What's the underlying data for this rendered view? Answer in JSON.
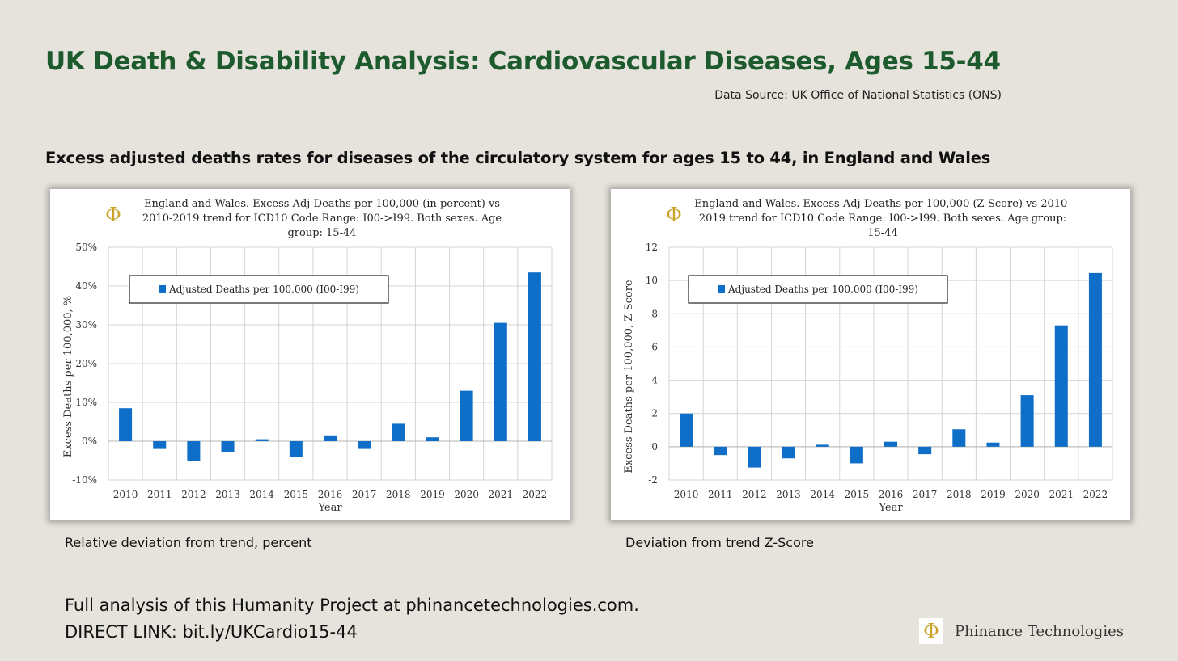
{
  "slide": {
    "title": "UK Death & Disability Analysis: Cardiovascular Diseases, Ages 15-44",
    "data_source": "Data Source: UK Office of National Statistics (ONS)",
    "section_heading": "Excess adjusted deaths rates for diseases of the circulatory system for ages 15 to 44, in England and Wales",
    "captions": [
      "Relative deviation from trend, percent",
      "Deviation from trend Z-Score"
    ],
    "footer_line1": "Full analysis of this Humanity Project at phinancetechnologies.com.",
    "footer_line2": "DIRECT LINK: bit.ly/UKCardio15-44",
    "brand": "Phinance Technologies",
    "logo_glyph": "Φ",
    "logo_icon": "phi-logo-icon",
    "colors": {
      "title": "#1d5b2e",
      "bar": "#0e6ec8",
      "background": "#e6e3dc",
      "logo_gold": "#c9a227"
    }
  },
  "chart_data": [
    {
      "type": "bar",
      "title": "England and Wales. Excess Adj-Deaths per 100,000 (in percent) vs 2010-2019 trend for ICD10 Code Range: I00->I99. Both sexes. Age group: 15-44",
      "title_lines": [
        "England and Wales. Excess Adj-Deaths per 100,000 (in percent) vs",
        "2010-2019 trend for ICD10 Code Range: I00->I99. Both sexes. Age",
        "group: 15-44"
      ],
      "xlabel": "Year",
      "ylabel": "Excess Deaths per 100,000, %",
      "categories": [
        "2010",
        "2011",
        "2012",
        "2013",
        "2014",
        "2015",
        "2016",
        "2017",
        "2018",
        "2019",
        "2020",
        "2021",
        "2022"
      ],
      "series": [
        {
          "name": "Adjusted Deaths per 100,000 (I00-I99)",
          "values": [
            8.5,
            -2.0,
            -5.0,
            -2.7,
            0.5,
            -4.0,
            1.5,
            -2.0,
            4.5,
            1.0,
            13.0,
            30.5,
            43.5
          ]
        }
      ],
      "ylim": [
        -10,
        50
      ],
      "yticks": [
        -10,
        0,
        10,
        20,
        30,
        40,
        50
      ],
      "ytick_labels": [
        "-10%",
        "0%",
        "10%",
        "20%",
        "30%",
        "40%",
        "50%"
      ],
      "grid": true,
      "legend_position": "top-left"
    },
    {
      "type": "bar",
      "title": "England and Wales. Excess Adj-Deaths per 100,000 (Z-Score) vs 2010-2019 trend for ICD10 Code Range: I00->I99. Both sexes. Age group: 15-44",
      "title_lines": [
        "England and Wales. Excess Adj-Deaths per 100,000 (Z-Score) vs 2010-",
        "2019 trend for ICD10 Code Range: I00->I99. Both sexes. Age group:",
        "15-44"
      ],
      "xlabel": "Year",
      "ylabel": "Excess Deaths per 100,000, Z-Score",
      "categories": [
        "2010",
        "2011",
        "2012",
        "2013",
        "2014",
        "2015",
        "2016",
        "2017",
        "2018",
        "2019",
        "2020",
        "2021",
        "2022"
      ],
      "series": [
        {
          "name": "Adjusted Deaths per 100,000 (I00-I99)",
          "values": [
            2.0,
            -0.5,
            -1.25,
            -0.7,
            0.12,
            -1.0,
            0.3,
            -0.45,
            1.05,
            0.25,
            3.1,
            7.3,
            10.45
          ]
        }
      ],
      "ylim": [
        -2,
        12
      ],
      "yticks": [
        -2,
        0,
        2,
        4,
        6,
        8,
        10,
        12
      ],
      "ytick_labels": [
        "-2",
        "0",
        "2",
        "4",
        "6",
        "8",
        "10",
        "12"
      ],
      "grid": true,
      "legend_position": "top-left"
    }
  ]
}
